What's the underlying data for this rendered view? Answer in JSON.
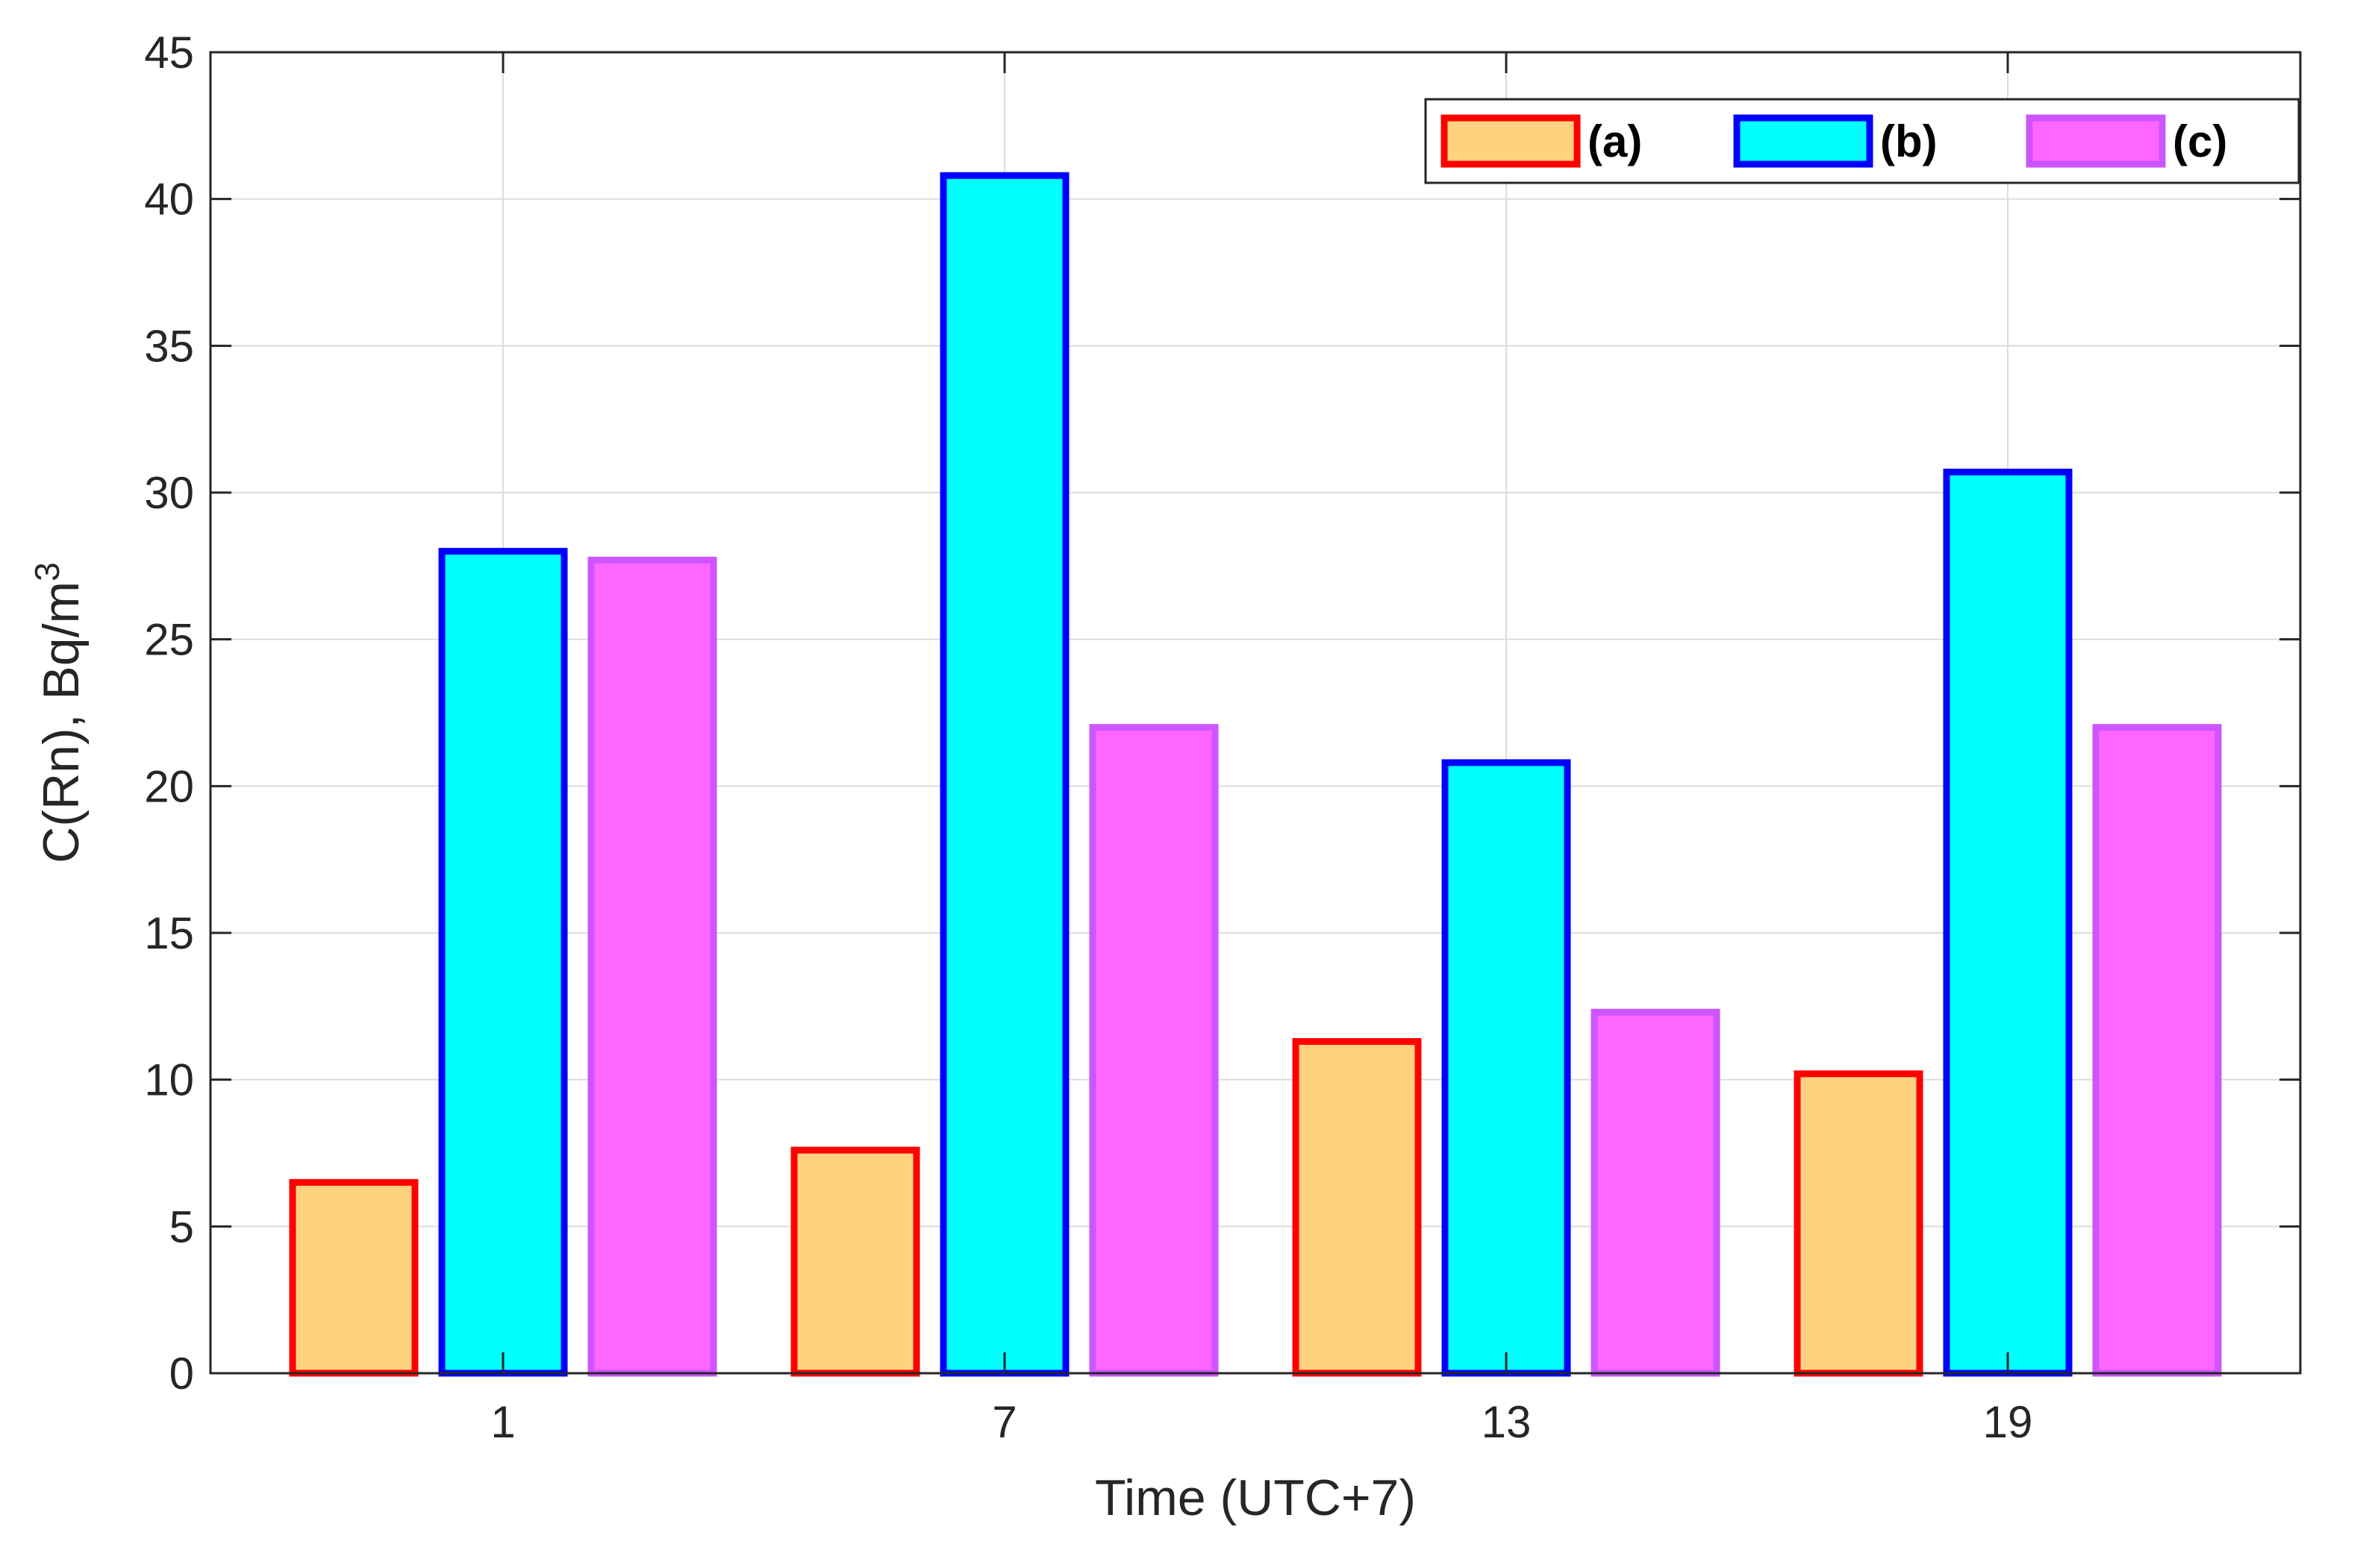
{
  "chart_data": {
    "type": "bar",
    "categories": [
      "1",
      "7",
      "13",
      "19"
    ],
    "series": [
      {
        "name": "(a)",
        "values": [
          6.5,
          7.6,
          11.3,
          10.2
        ],
        "fill": "#FFD27F",
        "stroke": "#FF0000"
      },
      {
        "name": "(b)",
        "values": [
          28.0,
          40.8,
          20.8,
          30.7
        ],
        "fill": "#00FFFF",
        "stroke": "#0000FF"
      },
      {
        "name": "(c)",
        "values": [
          27.7,
          22.0,
          12.3,
          22.0
        ],
        "fill": "#FF66FF",
        "stroke": "#CC55FF"
      }
    ],
    "xlabel": "Time (UTC+7)",
    "ylabel": "C(Rn), Bq/m",
    "ylabel_superscript": "3",
    "ylim": [
      0,
      45
    ],
    "yticks": [
      0,
      5,
      10,
      15,
      20,
      25,
      30,
      35,
      40,
      45
    ],
    "grid": true,
    "legend_position": "top-right"
  }
}
